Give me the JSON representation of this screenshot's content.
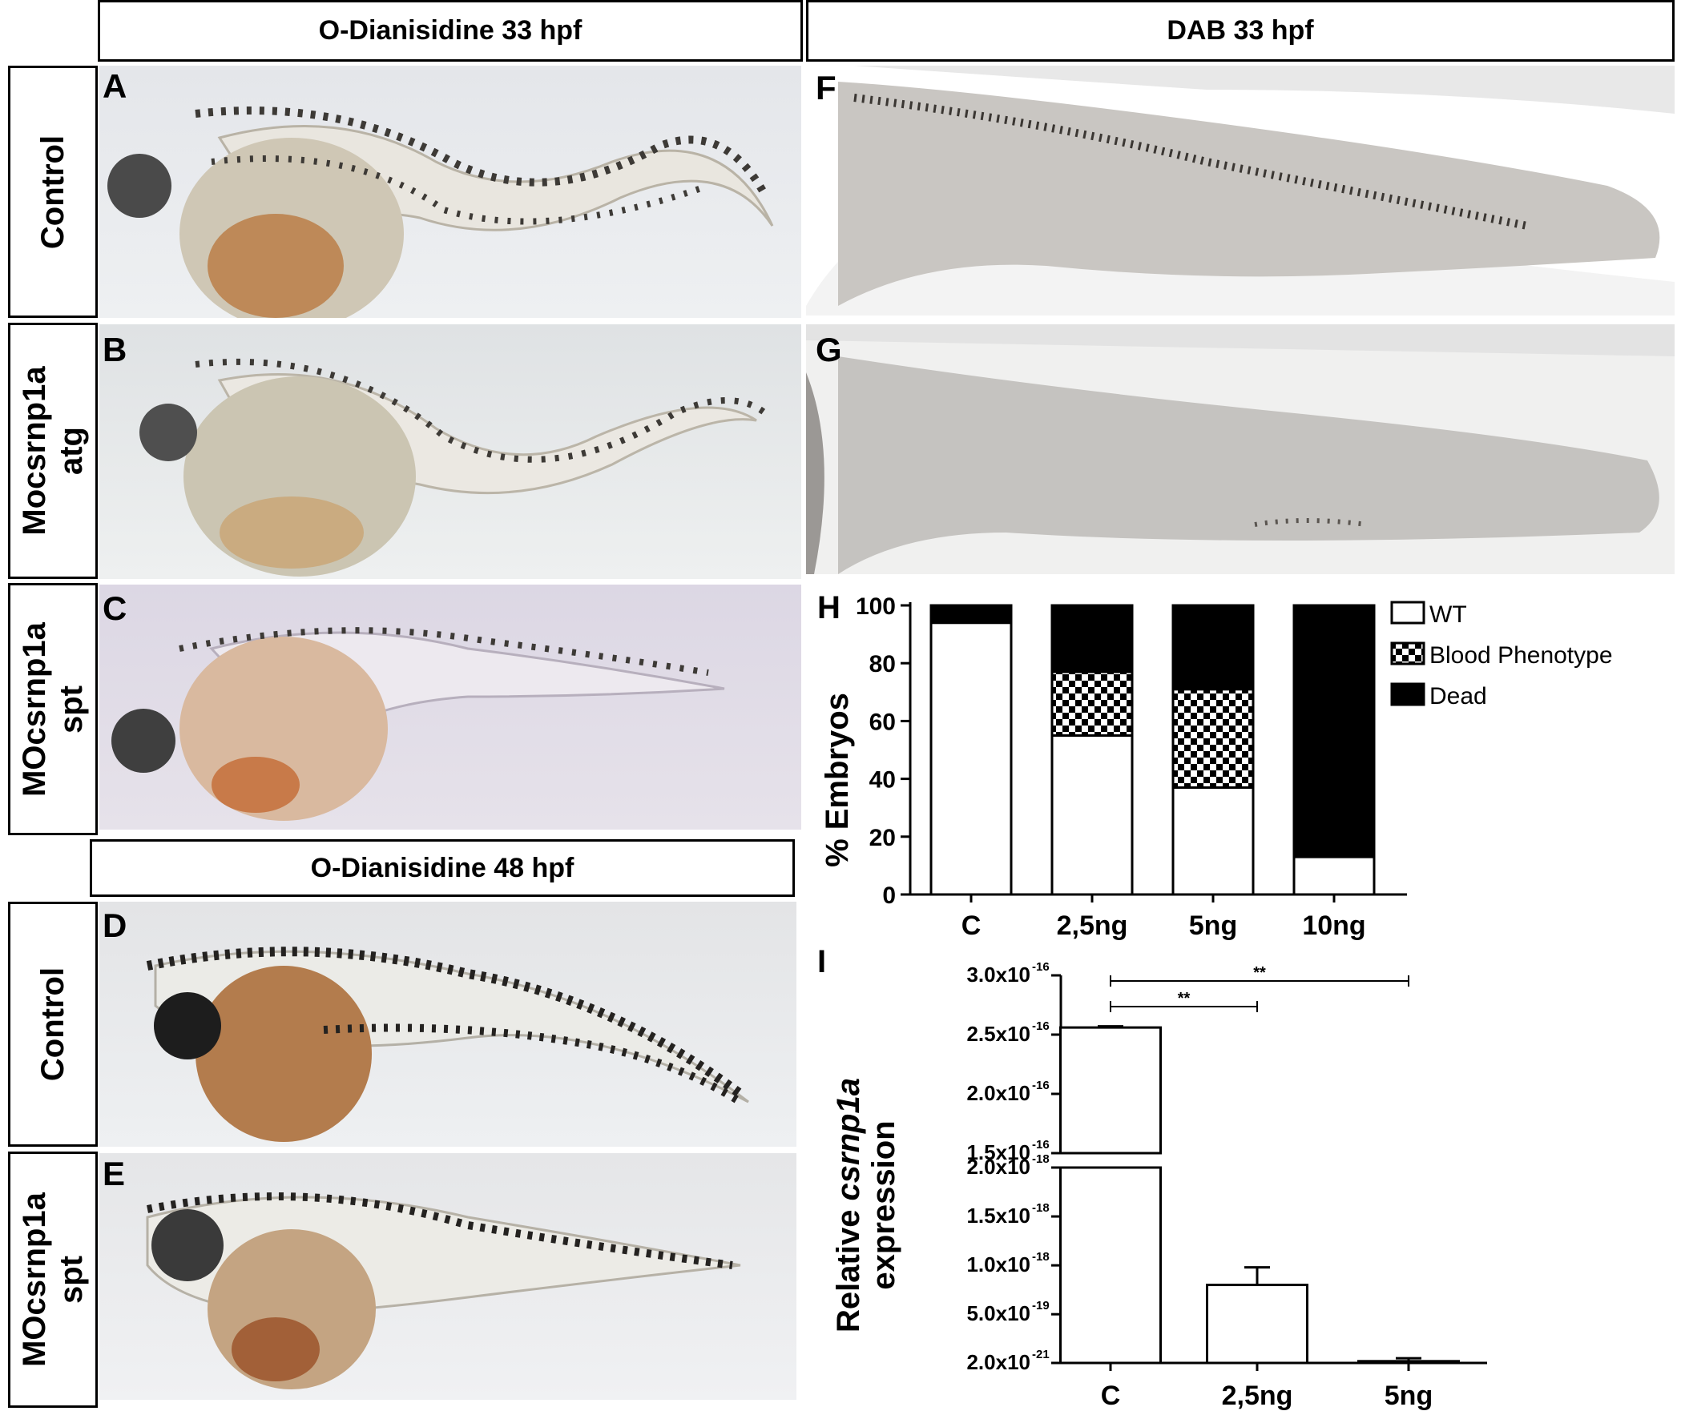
{
  "headers": {
    "top_left": "O-Dianisidine 33 hpf",
    "top_right": "DAB 33 hpf",
    "mid_left": "O-Dianisidine 48 hpf"
  },
  "row_labels": {
    "a": "Control",
    "b": [
      "Mocsrnp1a",
      "atg"
    ],
    "c": [
      "MOcsrnp1a",
      "spt"
    ],
    "d": "Control",
    "e": [
      "MOcsrnp1a",
      "spt"
    ]
  },
  "panel_letters": [
    "A",
    "B",
    "C",
    "D",
    "E",
    "F",
    "G",
    "H",
    "I"
  ],
  "chart_data": [
    {
      "panel": "H",
      "type": "bar",
      "stacked": true,
      "ylabel": "% Embryos",
      "categories": [
        "C",
        "2,5ng",
        "5ng",
        "10ng"
      ],
      "ylim": [
        0,
        100
      ],
      "yticks": [
        "0",
        "20",
        "40",
        "60",
        "80",
        "100"
      ],
      "series": [
        {
          "name": "WT",
          "values": [
            94,
            55,
            37,
            13
          ],
          "pattern": "white"
        },
        {
          "name": "Blood Phenotype",
          "values": [
            0,
            22,
            34,
            0
          ],
          "pattern": "checker"
        },
        {
          "name": "Dead",
          "values": [
            6,
            23,
            29,
            87
          ],
          "pattern": "black"
        }
      ],
      "legend_position": "right"
    },
    {
      "panel": "I",
      "type": "bar",
      "ylabel_prefix": "Relative ",
      "ylabel_italic": "csrnp1a",
      "ylabel_line2": "expression",
      "categories": [
        "C",
        "2,5ng",
        "5ng"
      ],
      "values": [
        2.56e-16,
        8e-19,
        2e-20
      ],
      "errors": [
        1e-18,
        1.8e-19,
        3e-20
      ],
      "broken_axis": true,
      "upper_axis": {
        "ylim": [
          1.5e-16,
          3e-16
        ],
        "ticks": [
          {
            "mant": "1.5x10",
            "exp": "-16"
          },
          {
            "mant": "2.0x10",
            "exp": "-16"
          },
          {
            "mant": "2.5x10",
            "exp": "-16"
          },
          {
            "mant": "3.0x10",
            "exp": "-16"
          }
        ]
      },
      "lower_axis": {
        "ylim": [
          2e-21,
          2e-18
        ],
        "ticks": [
          {
            "mant": "2.0x10",
            "exp": "-21"
          },
          {
            "mant": "5.0x10",
            "exp": "-19"
          },
          {
            "mant": "1.0x10",
            "exp": "-18"
          },
          {
            "mant": "1.5x10",
            "exp": "-18"
          },
          {
            "mant": "2.0x10",
            "exp": "-18"
          }
        ]
      },
      "significance": [
        {
          "from": "C",
          "to": "2,5ng",
          "label": "**"
        },
        {
          "from": "C",
          "to": "5ng",
          "label": "**"
        }
      ]
    }
  ]
}
